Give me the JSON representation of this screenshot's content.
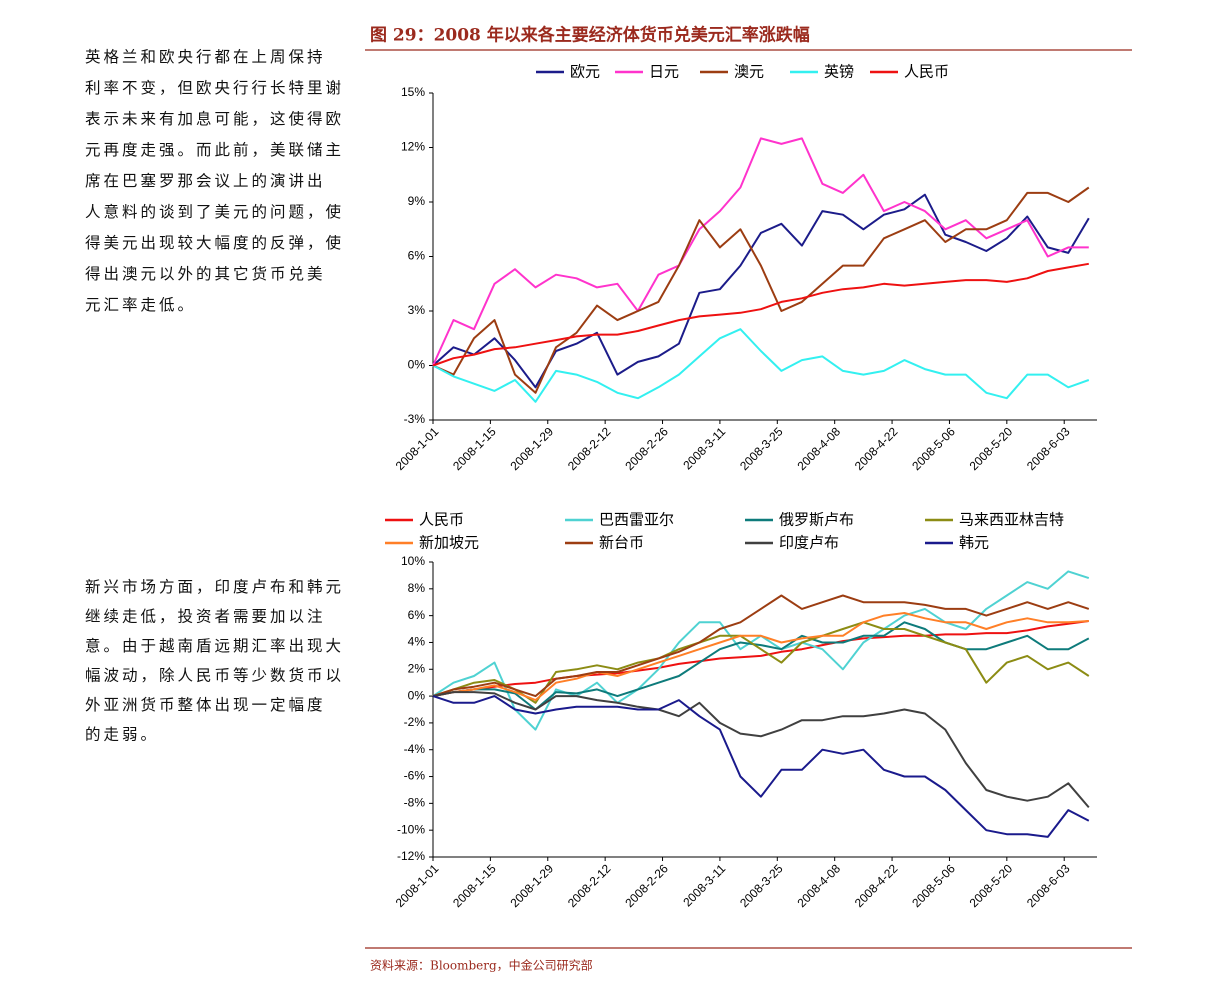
{
  "figure_title": "图 29：2008 年以来各主要经济体货币兑美元汇率涨跌幅",
  "paragraphs": [
    [
      "英格兰和欧央行都在上周保持",
      "利率不变，但欧央行行长特里谢",
      "表示未来有加息可能，这使得欧",
      "元再度走强。而此前，美联储主",
      "席在巴塞罗那会议上的演讲出",
      "人意料的谈到了美元的问题，使",
      "得美元出现较大幅度的反弹，使",
      "得出澳元以外的其它货币兑美",
      "元汇率走低。"
    ],
    [
      "新兴市场方面，印度卢布和韩元",
      "继续走低，投资者需要加以注",
      "意。由于越南盾远期汇率出现大",
      "幅波动，除人民币等少数货币以",
      "外亚洲货币整体出现一定幅度",
      "的走弱。"
    ]
  ],
  "source": "资料来源：Bloomberg，中金公司研究部",
  "chart_data": [
    {
      "type": "line",
      "x": [
        "2008-1-01",
        "2008-1-06",
        "2008-1-11",
        "2008-1-16",
        "2008-1-21",
        "2008-1-26",
        "2008-1-31",
        "2008-2-05",
        "2008-2-10",
        "2008-2-15",
        "2008-2-20",
        "2008-2-25",
        "2008-3-01",
        "2008-3-06",
        "2008-3-11",
        "2008-3-16",
        "2008-3-21",
        "2008-3-26",
        "2008-3-31",
        "2008-4-05",
        "2008-4-10",
        "2008-4-15",
        "2008-4-20",
        "2008-4-25",
        "2008-4-30",
        "2008-5-05",
        "2008-5-10",
        "2008-5-15",
        "2008-5-20",
        "2008-5-25",
        "2008-5-30",
        "2008-6-04",
        "2008-6-09"
      ],
      "xlim": [
        "2008-1-01",
        "2008-6-11"
      ],
      "xticks": [
        "2008-1-01",
        "2008-1-15",
        "2008-1-29",
        "2008-2-12",
        "2008-2-26",
        "2008-3-11",
        "2008-3-25",
        "2008-4-08",
        "2008-4-22",
        "2008-5-06",
        "2008-5-20",
        "2008-6-03"
      ],
      "ylim": [
        -3,
        15
      ],
      "yticks": [
        {
          "value": -3,
          "label": "-3%"
        },
        {
          "value": 0,
          "label": "0%"
        },
        {
          "value": 3,
          "label": "3%"
        },
        {
          "value": 6,
          "label": "6%"
        },
        {
          "value": 9,
          "label": "9%"
        },
        {
          "value": 12,
          "label": "12%"
        },
        {
          "value": 15,
          "label": "15%"
        }
      ],
      "series": [
        {
          "name": "欧元",
          "color": "#1c1c8a",
          "values": [
            0,
            1.0,
            0.6,
            1.5,
            0.3,
            -1.2,
            0.8,
            1.2,
            1.8,
            -0.5,
            0.2,
            0.5,
            1.2,
            4.0,
            4.2,
            5.5,
            7.3,
            7.8,
            6.6,
            8.5,
            8.3,
            7.5,
            8.3,
            8.6,
            9.4,
            7.2,
            6.8,
            6.3,
            7.0,
            8.2,
            6.5,
            6.2,
            8.1
          ]
        },
        {
          "name": "日元",
          "color": "#ff33cc",
          "values": [
            0,
            2.5,
            2.0,
            4.5,
            5.3,
            4.3,
            5.0,
            4.8,
            4.3,
            4.5,
            3.0,
            5.0,
            5.5,
            7.5,
            8.5,
            9.8,
            12.5,
            12.2,
            12.5,
            10.0,
            9.5,
            10.5,
            8.5,
            9.0,
            8.5,
            7.5,
            8.0,
            7.0,
            7.5,
            8.0,
            6.0,
            6.5,
            6.5
          ]
        },
        {
          "name": "澳元",
          "color": "#9c3d12",
          "values": [
            0,
            -0.5,
            1.5,
            2.5,
            -0.5,
            -1.5,
            1.0,
            1.8,
            3.3,
            2.5,
            3.0,
            3.5,
            5.5,
            8.0,
            6.5,
            7.5,
            5.5,
            3.0,
            3.5,
            4.5,
            5.5,
            5.5,
            7.0,
            7.5,
            8.0,
            6.8,
            7.5,
            7.5,
            8.0,
            9.5,
            9.5,
            9.0,
            9.8
          ]
        },
        {
          "name": "英镑",
          "color": "#33f0f0",
          "values": [
            0,
            -0.6,
            -1.0,
            -1.4,
            -0.8,
            -2.0,
            -0.3,
            -0.5,
            -0.9,
            -1.5,
            -1.8,
            -1.2,
            -0.5,
            0.5,
            1.5,
            2.0,
            0.8,
            -0.3,
            0.3,
            0.5,
            -0.3,
            -0.5,
            -0.3,
            0.3,
            -0.2,
            -0.5,
            -0.5,
            -1.5,
            -1.8,
            -0.5,
            -0.5,
            -1.2,
            -0.8
          ]
        },
        {
          "name": "人民币",
          "color": "#ee1111",
          "values": [
            0,
            0.4,
            0.6,
            0.9,
            1.0,
            1.2,
            1.4,
            1.6,
            1.7,
            1.7,
            1.9,
            2.2,
            2.5,
            2.7,
            2.8,
            2.9,
            3.1,
            3.5,
            3.7,
            4.0,
            4.2,
            4.3,
            4.5,
            4.4,
            4.5,
            4.6,
            4.7,
            4.7,
            4.6,
            4.8,
            5.2,
            5.4,
            5.6
          ]
        }
      ]
    },
    {
      "type": "line",
      "x": [
        "2008-1-01",
        "2008-1-06",
        "2008-1-11",
        "2008-1-16",
        "2008-1-21",
        "2008-1-26",
        "2008-1-31",
        "2008-2-05",
        "2008-2-10",
        "2008-2-15",
        "2008-2-20",
        "2008-2-25",
        "2008-3-01",
        "2008-3-06",
        "2008-3-11",
        "2008-3-16",
        "2008-3-21",
        "2008-3-26",
        "2008-3-31",
        "2008-4-05",
        "2008-4-10",
        "2008-4-15",
        "2008-4-20",
        "2008-4-25",
        "2008-4-30",
        "2008-5-05",
        "2008-5-10",
        "2008-5-15",
        "2008-5-20",
        "2008-5-25",
        "2008-5-30",
        "2008-6-04",
        "2008-6-09"
      ],
      "xlim": [
        "2008-1-01",
        "2008-6-11"
      ],
      "xticks": [
        "2008-1-01",
        "2008-1-15",
        "2008-1-29",
        "2008-2-12",
        "2008-2-26",
        "2008-3-11",
        "2008-3-25",
        "2008-4-08",
        "2008-4-22",
        "2008-5-06",
        "2008-5-20",
        "2008-6-03"
      ],
      "ylim": [
        -12,
        10
      ],
      "yticks": [
        {
          "value": -12,
          "label": "-12%"
        },
        {
          "value": -10,
          "label": "-10%"
        },
        {
          "value": -8,
          "label": "-8%"
        },
        {
          "value": -6,
          "label": "-6%"
        },
        {
          "value": -4,
          "label": "-4%"
        },
        {
          "value": -2,
          "label": "-2%"
        },
        {
          "value": 0,
          "label": "0%"
        },
        {
          "value": 2,
          "label": "2%"
        },
        {
          "value": 4,
          "label": "4%"
        },
        {
          "value": 6,
          "label": "6%"
        },
        {
          "value": 8,
          "label": "8%"
        },
        {
          "value": 10,
          "label": "10%"
        }
      ],
      "series": [
        {
          "name": "人民币",
          "color": "#ee1111",
          "values": [
            0,
            0.3,
            0.5,
            0.7,
            0.9,
            1.0,
            1.3,
            1.5,
            1.6,
            1.7,
            1.9,
            2.1,
            2.4,
            2.6,
            2.8,
            2.9,
            3.0,
            3.3,
            3.5,
            3.8,
            4.1,
            4.3,
            4.4,
            4.5,
            4.5,
            4.6,
            4.6,
            4.7,
            4.7,
            4.9,
            5.2,
            5.4,
            5.6
          ]
        },
        {
          "name": "巴西雷亚尔",
          "color": "#4fd2d2",
          "values": [
            0,
            1.0,
            1.5,
            2.5,
            -1.0,
            -2.5,
            0.5,
            0.0,
            1.0,
            -0.5,
            0.5,
            2.0,
            4.0,
            5.5,
            5.5,
            3.5,
            4.5,
            3.5,
            4.0,
            3.5,
            2.0,
            4.0,
            5.0,
            6.0,
            6.5,
            5.5,
            5.0,
            6.5,
            7.5,
            8.5,
            8.0,
            9.3,
            8.8
          ]
        },
        {
          "name": "俄罗斯卢布",
          "color": "#0e7b7b",
          "values": [
            0,
            0.3,
            0.5,
            0.5,
            0.2,
            -1.0,
            0.3,
            0.2,
            0.5,
            0,
            0.5,
            1.0,
            1.5,
            2.5,
            3.5,
            4.0,
            3.8,
            3.5,
            4.5,
            4.0,
            4.0,
            4.5,
            4.5,
            5.5,
            5.0,
            4.0,
            3.5,
            3.5,
            4.0,
            4.5,
            3.5,
            3.5,
            4.3
          ]
        },
        {
          "name": "马来西亚林吉特",
          "color": "#8c8c14",
          "values": [
            0,
            0.5,
            1.0,
            1.2,
            0.5,
            -0.5,
            1.8,
            2.0,
            2.3,
            2.0,
            2.5,
            2.8,
            3.5,
            4.0,
            4.5,
            4.5,
            3.5,
            2.5,
            4.0,
            4.5,
            5.0,
            5.5,
            5.0,
            5.0,
            4.5,
            4.0,
            3.5,
            1.0,
            2.5,
            3.0,
            2.0,
            2.5,
            1.5
          ]
        },
        {
          "name": "新加坡元",
          "color": "#ff7f27",
          "values": [
            0,
            0.3,
            0.5,
            0.8,
            0.3,
            -0.3,
            1.0,
            1.3,
            1.8,
            1.5,
            2.0,
            2.5,
            3.0,
            3.5,
            4.0,
            4.5,
            4.5,
            4.0,
            4.3,
            4.5,
            4.5,
            5.5,
            6.0,
            6.2,
            5.8,
            5.5,
            5.5,
            5.0,
            5.5,
            5.8,
            5.5,
            5.5,
            5.6
          ]
        },
        {
          "name": "新台币",
          "color": "#9c3d12",
          "values": [
            0,
            0.5,
            0.7,
            1.0,
            0.5,
            0,
            1.3,
            1.5,
            1.8,
            1.8,
            2.3,
            2.8,
            3.3,
            4.0,
            5.0,
            5.5,
            6.5,
            7.5,
            6.5,
            7.0,
            7.5,
            7.0,
            7.0,
            7.0,
            6.8,
            6.5,
            6.5,
            6.0,
            6.5,
            7.0,
            6.5,
            7.0,
            6.5
          ]
        },
        {
          "name": "印度卢布",
          "color": "#404040",
          "values": [
            0,
            0.3,
            0.3,
            0.2,
            -0.5,
            -1.0,
            0,
            0,
            -0.3,
            -0.5,
            -0.8,
            -1.0,
            -1.5,
            -0.5,
            -2.0,
            -2.8,
            -3.0,
            -2.5,
            -1.8,
            -1.8,
            -1.5,
            -1.5,
            -1.3,
            -1.0,
            -1.3,
            -2.5,
            -5.0,
            -7.0,
            -7.5,
            -7.8,
            -7.5,
            -6.5,
            -8.3
          ]
        },
        {
          "name": "韩元",
          "color": "#1a1a8c",
          "values": [
            0,
            -0.5,
            -0.5,
            0,
            -1.0,
            -1.3,
            -1.0,
            -0.8,
            -0.8,
            -0.8,
            -1.0,
            -1.0,
            -0.3,
            -1.5,
            -2.5,
            -6.0,
            -7.5,
            -5.5,
            -5.5,
            -4.0,
            -4.3,
            -4.0,
            -5.5,
            -6.0,
            -6.0,
            -7.0,
            -8.5,
            -10.0,
            -10.3,
            -10.3,
            -10.5,
            -8.5,
            -9.3
          ]
        }
      ]
    }
  ]
}
